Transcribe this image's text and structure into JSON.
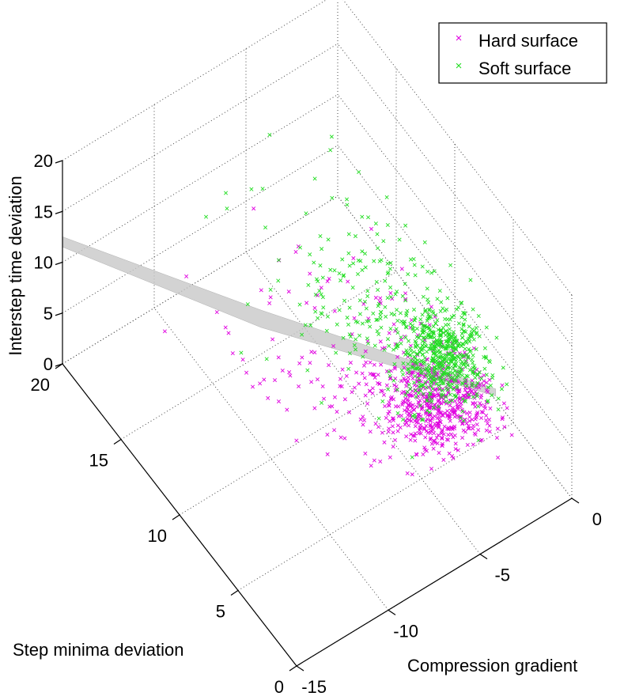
{
  "chart_data": {
    "type": "scatter",
    "projection": "3d",
    "title": "",
    "xlabel": "Compression gradient",
    "ylabel": "Step minima deviation",
    "zlabel": "Interstep time deviation",
    "xlim": [
      -15,
      0
    ],
    "ylim": [
      0,
      20
    ],
    "zlim": [
      0,
      20
    ],
    "x_ticks": [
      "-15",
      "-10",
      "-5",
      "0"
    ],
    "y_ticks": [
      "0",
      "5",
      "10",
      "15",
      "20"
    ],
    "z_ticks": [
      "0",
      "5",
      "10",
      "15",
      "20"
    ],
    "grid": true,
    "legend_position": "top-right",
    "marker": "x",
    "fitted_plane": {
      "description": "translucent grey separating plane",
      "color": "#c8c8c8"
    },
    "series": [
      {
        "name": "Hard surface",
        "color": "#e000e0",
        "clusters": [
          {
            "center": [
              -2.6,
              7.2,
              1.6
            ],
            "spread": [
              1.2,
              1.4,
              0.6
            ],
            "count": 520
          },
          {
            "center": [
              -4.0,
              9.5,
              1.8
            ],
            "spread": [
              1.8,
              2.4,
              0.9
            ],
            "count": 140
          },
          {
            "center": [
              -6.5,
              14.0,
              1.7
            ],
            "spread": [
              2.8,
              3.5,
              1.0
            ],
            "count": 45
          }
        ]
      },
      {
        "name": "Soft surface",
        "color": "#22dd22",
        "clusters": [
          {
            "center": [
              -2.0,
              8.0,
              4.2
            ],
            "spread": [
              1.0,
              1.3,
              1.1
            ],
            "count": 560
          },
          {
            "center": [
              -3.2,
              11.0,
              5.8
            ],
            "spread": [
              1.6,
              2.2,
              1.8
            ],
            "count": 160
          },
          {
            "center": [
              -5.0,
              14.5,
              7.0
            ],
            "spread": [
              2.5,
              3.0,
              2.5
            ],
            "count": 45
          }
        ]
      }
    ]
  }
}
